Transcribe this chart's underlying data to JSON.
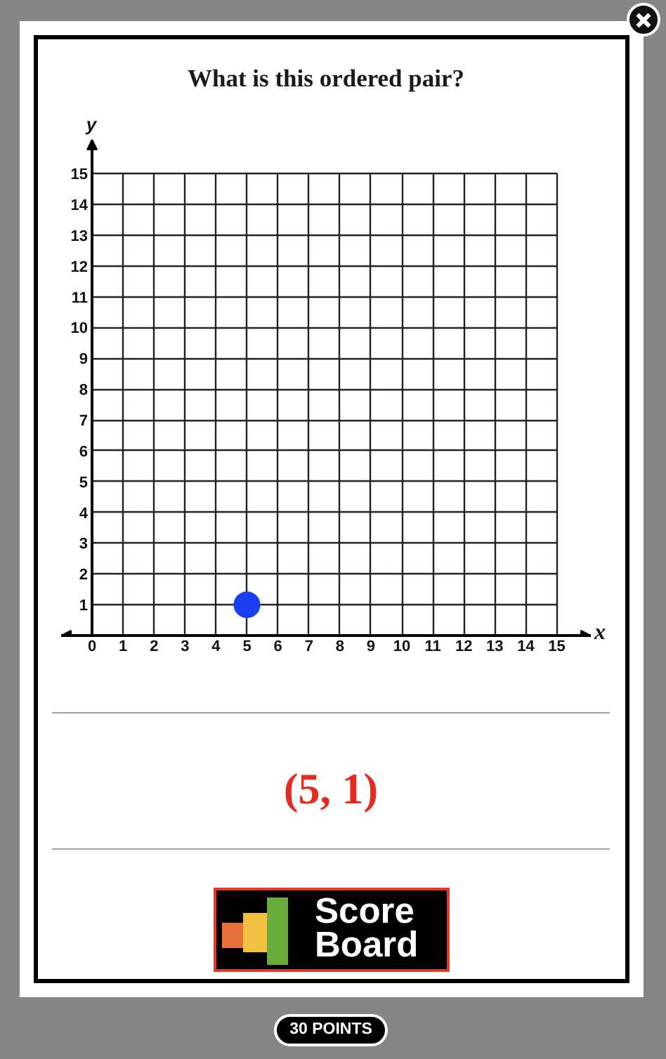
{
  "chart_data": {
    "type": "scatter",
    "title": "What is this ordered pair?",
    "xlabel": "x",
    "ylabel": "y",
    "x": [
      5
    ],
    "values": [
      1
    ],
    "color": "#1a3ff2",
    "marker": "circle",
    "xlim": [
      -1,
      16.1
    ],
    "ylim": [
      0,
      16.1
    ],
    "xticks": [
      0,
      1,
      2,
      3,
      4,
      5,
      6,
      7,
      8,
      9,
      10,
      11,
      12,
      13,
      14,
      15
    ],
    "yticks": [
      1,
      2,
      3,
      4,
      5,
      6,
      7,
      8,
      9,
      10,
      11,
      12,
      13,
      14,
      15
    ],
    "grid": true,
    "annotations": [
      "(5, 1)",
      "Score Board",
      "30 POINTS"
    ]
  }
}
